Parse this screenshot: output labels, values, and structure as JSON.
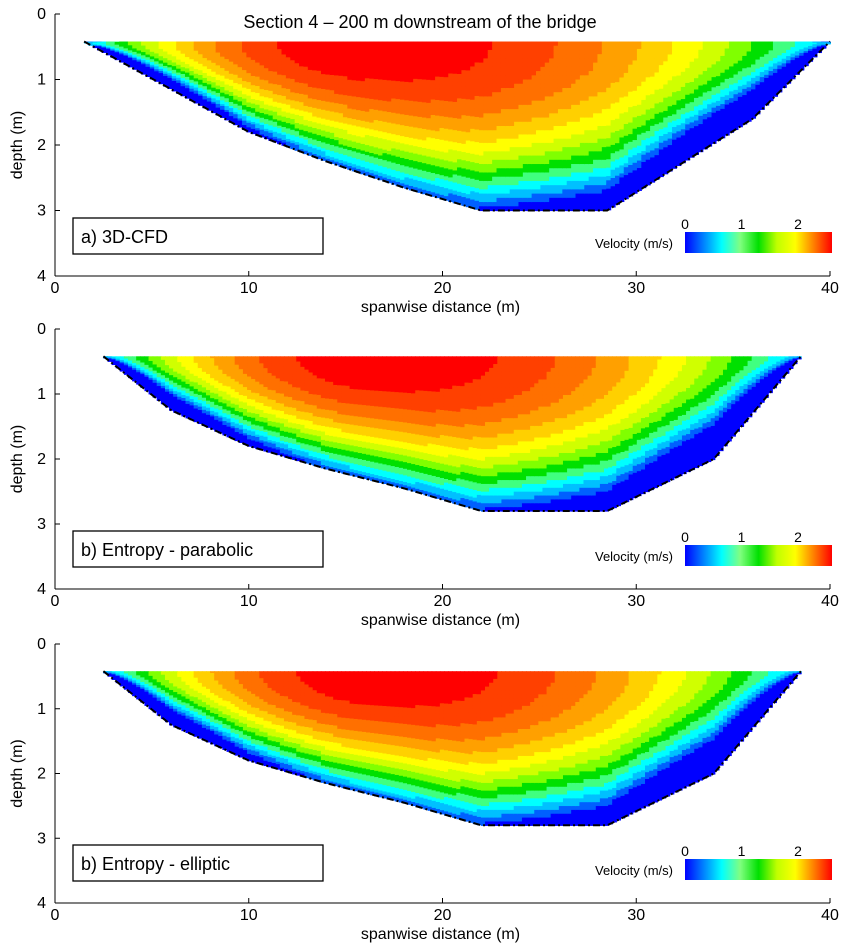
{
  "figure_title": "Section 4 – 200 m downstream of the bridge",
  "chart_data": [
    {
      "type": "heatmap",
      "panel_label": "a) 3D-CFD",
      "xlabel": "spanwise distance (m)",
      "ylabel": "depth (m)",
      "xlim": [
        0,
        40
      ],
      "ylim": [
        4,
        0
      ],
      "xticks": [
        "0",
        "10",
        "20",
        "30",
        "40"
      ],
      "yticks": [
        "0",
        "1",
        "2",
        "3",
        "4"
      ],
      "water_surface_depth": 0.42,
      "bed_profile": {
        "x": [
          1.5,
          6,
          10,
          14,
          18,
          22,
          28.5,
          36,
          40
        ],
        "depth": [
          0.42,
          1.15,
          1.8,
          2.25,
          2.65,
          3.0,
          3.0,
          1.6,
          0.42
        ]
      },
      "velocity_max_at": {
        "x": 15.5,
        "depth": 0.45
      },
      "velocity_peak": 2.55,
      "colorbar": {
        "label": "Velocity (m/s)",
        "ticks": [
          "0",
          "1",
          "2"
        ],
        "range": [
          0,
          2.6
        ]
      }
    },
    {
      "type": "heatmap",
      "panel_label": "b) Entropy - parabolic",
      "xlabel": "spanwise distance (m)",
      "ylabel": "depth (m)",
      "xlim": [
        0,
        40
      ],
      "ylim": [
        4,
        0
      ],
      "xticks": [
        "0",
        "10",
        "20",
        "30",
        "40"
      ],
      "yticks": [
        "0",
        "1",
        "2",
        "3",
        "4"
      ],
      "water_surface_depth": 0.42,
      "bed_profile": {
        "x": [
          2.5,
          6,
          10,
          14,
          18,
          22,
          28.5,
          34,
          38.5
        ],
        "depth": [
          0.42,
          1.25,
          1.8,
          2.15,
          2.45,
          2.8,
          2.8,
          2.0,
          0.42
        ]
      },
      "velocity_max_at": {
        "x": 16.5,
        "depth": 0.42
      },
      "velocity_peak": 2.55,
      "colorbar": {
        "label": "Velocity (m/s)",
        "ticks": [
          "0",
          "1",
          "2"
        ],
        "range": [
          0,
          2.6
        ]
      }
    },
    {
      "type": "heatmap",
      "panel_label": "b) Entropy - elliptic",
      "xlabel": "spanwise distance (m)",
      "ylabel": "depth (m)",
      "xlim": [
        0,
        40
      ],
      "ylim": [
        4,
        0
      ],
      "xticks": [
        "0",
        "10",
        "20",
        "30",
        "40"
      ],
      "yticks": [
        "0",
        "1",
        "2",
        "3",
        "4"
      ],
      "water_surface_depth": 0.42,
      "bed_profile": {
        "x": [
          2.5,
          6,
          10,
          14,
          18,
          22,
          28.5,
          34,
          38.5
        ],
        "depth": [
          0.42,
          1.25,
          1.8,
          2.15,
          2.45,
          2.8,
          2.8,
          2.0,
          0.42
        ]
      },
      "velocity_max_at": {
        "x": 16.5,
        "depth": 0.42
      },
      "velocity_peak": 2.55,
      "colorbar": {
        "label": "Velocity (m/s)",
        "ticks": [
          "0",
          "1",
          "2"
        ],
        "range": [
          0,
          2.6
        ]
      }
    }
  ]
}
